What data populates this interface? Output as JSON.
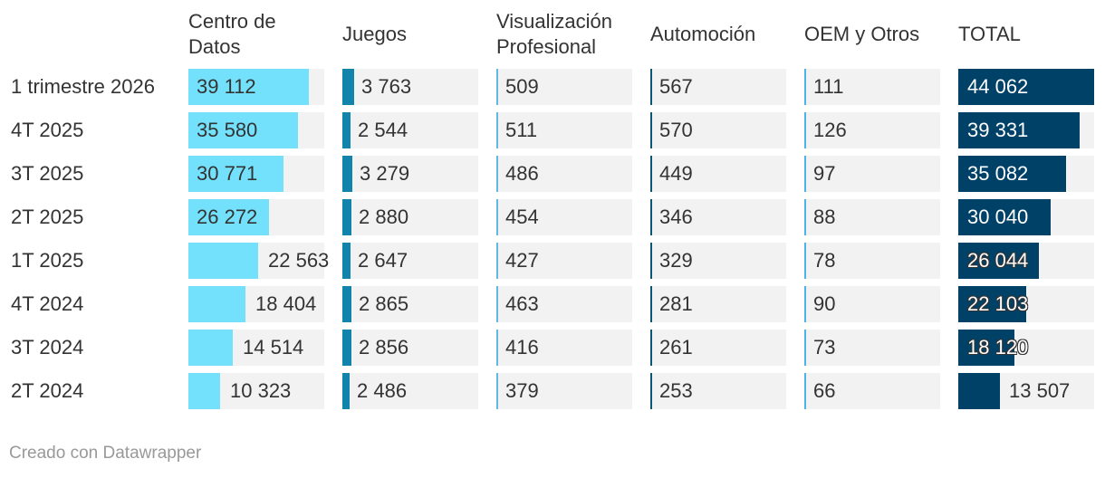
{
  "chart_data": {
    "type": "table",
    "columns": [
      {
        "key": "dc",
        "label": "Centro de Datos",
        "max": 44062,
        "color": "#74e1fc"
      },
      {
        "key": "games",
        "label": "Juegos",
        "max": 44062,
        "color": "#1283ab"
      },
      {
        "key": "viz",
        "label": "Visualización Profesional",
        "max": 44062,
        "color": "#5fb9e0"
      },
      {
        "key": "auto",
        "label": "Automoción",
        "max": 44062,
        "color": "#0b5577"
      },
      {
        "key": "oem",
        "label": "OEM y Otros",
        "max": 44062,
        "color": "#4cb6e0"
      },
      {
        "key": "total",
        "label": "TOTAL",
        "max": 44062,
        "color": "#004168"
      }
    ],
    "rows": [
      {
        "label": "1 trimestre 2026",
        "values": [
          39112,
          3763,
          509,
          567,
          111,
          44062
        ],
        "display": [
          "39 112",
          "3 763",
          "509",
          "567",
          "111",
          "44 062"
        ]
      },
      {
        "label": "4T 2025",
        "values": [
          35580,
          2544,
          511,
          570,
          126,
          39331
        ],
        "display": [
          "35 580",
          "2 544",
          "511",
          "570",
          "126",
          "39 331"
        ]
      },
      {
        "label": "3T 2025",
        "values": [
          30771,
          3279,
          486,
          449,
          97,
          35082
        ],
        "display": [
          "30 771",
          "3 279",
          "486",
          "449",
          "97",
          "35 082"
        ]
      },
      {
        "label": "2T 2025",
        "values": [
          26272,
          2880,
          454,
          346,
          88,
          30040
        ],
        "display": [
          "26 272",
          "2 880",
          "454",
          "346",
          "88",
          "30 040"
        ]
      },
      {
        "label": "1T 2025",
        "values": [
          22563,
          2647,
          427,
          329,
          78,
          26044
        ],
        "display": [
          "22 563",
          "2 647",
          "427",
          "329",
          "78",
          "26 044"
        ]
      },
      {
        "label": "4T 2024",
        "values": [
          18404,
          2865,
          463,
          281,
          90,
          22103
        ],
        "display": [
          "18 404",
          "2 865",
          "463",
          "281",
          "90",
          "22 103"
        ]
      },
      {
        "label": "3T 2024",
        "values": [
          14514,
          2856,
          416,
          261,
          73,
          18120
        ],
        "display": [
          "14 514",
          "2 856",
          "416",
          "261",
          "73",
          "18 120"
        ]
      },
      {
        "label": "2T 2024",
        "values": [
          10323,
          2486,
          379,
          253,
          66,
          13507
        ],
        "display": [
          "10 323",
          "2 486",
          "379",
          "253",
          "66",
          "13 507"
        ]
      }
    ]
  },
  "footer": "Creado con Datawrapper"
}
